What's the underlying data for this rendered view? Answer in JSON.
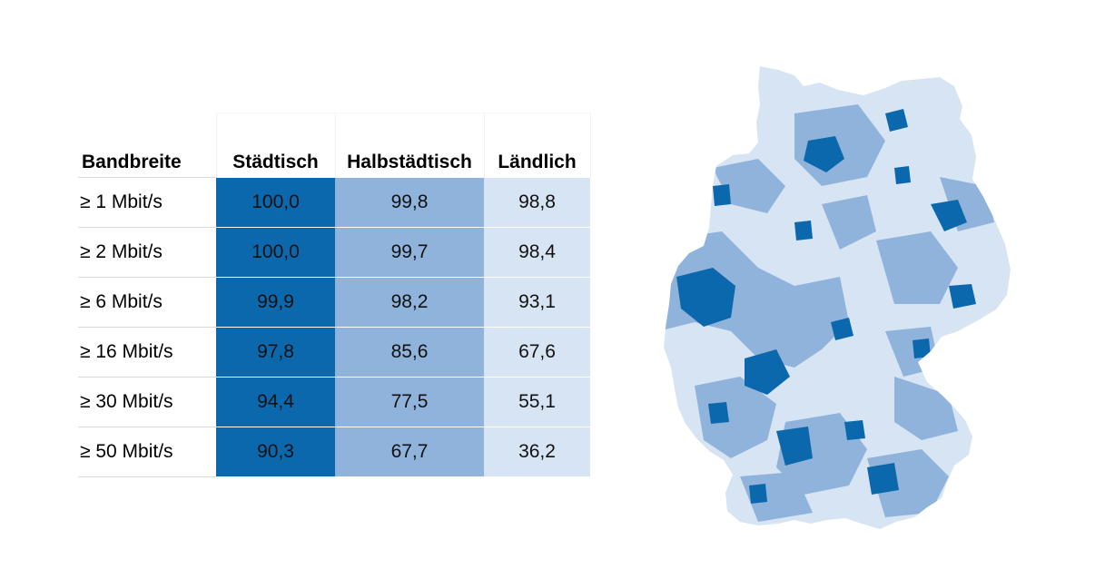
{
  "chart_data": {
    "type": "table",
    "columns": [
      "Bandbreite",
      "Städtisch",
      "Halbstädtisch",
      "Ländlich"
    ],
    "rows": [
      {
        "label": "≥ 1 Mbit/s",
        "values": [
          "100,0",
          "99,8",
          "98,8"
        ]
      },
      {
        "label": "≥ 2 Mbit/s",
        "values": [
          "100,0",
          "99,7",
          "98,4"
        ]
      },
      {
        "label": "≥ 6 Mbit/s",
        "values": [
          "99,9",
          "98,2",
          "93,1"
        ]
      },
      {
        "label": "≥ 16 Mbit/s",
        "values": [
          "97,8",
          "85,6",
          "67,6"
        ]
      },
      {
        "label": "≥ 30 Mbit/s",
        "values": [
          "94,4",
          "77,5",
          "55,1"
        ]
      },
      {
        "label": "≥ 50 Mbit/s",
        "values": [
          "90,3",
          "67,7",
          "36,2"
        ]
      }
    ]
  },
  "colors": {
    "urban": "#0b68ad",
    "semi_urban": "#8fb3db",
    "rural": "#d7e4f4"
  },
  "map": {
    "icon": "germany-map-icon",
    "category_icons": [
      "urban-region-icon",
      "semi-urban-region-icon",
      "rural-region-icon"
    ]
  }
}
